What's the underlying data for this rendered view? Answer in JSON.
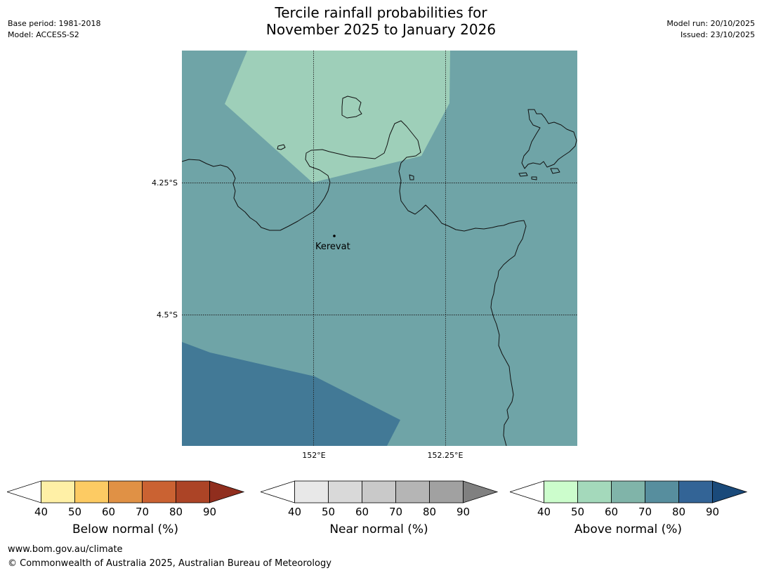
{
  "header": {
    "title_line1": "Tercile rainfall probabilities for",
    "title_line2": "November 2025 to January 2026",
    "base_period": "Base period: 1981-2018",
    "model": "Model: ACCESS-S2",
    "model_run": "Model run: 20/10/2025",
    "issued": "Issued: 23/10/2025"
  },
  "map": {
    "place_label": "Kerevat",
    "lat_labels": [
      "4.25°S",
      "4.5°S"
    ],
    "lon_labels": [
      "152°E",
      "152.25°E"
    ],
    "colors": {
      "above_50_60": "#9ecfb9",
      "above_60_70": "#6fa4a7",
      "above_80_90": "#427996",
      "coastline": "#111111",
      "gridline": "#222222"
    }
  },
  "legends": [
    {
      "title": "Below normal (%)",
      "ticks": [
        "40",
        "50",
        "60",
        "70",
        "80",
        "90"
      ],
      "colors": [
        "#fff0a6",
        "#fdcb63",
        "#e09145",
        "#ca6232",
        "#ac4426"
      ],
      "extend_color": "#902e1e"
    },
    {
      "title": "Near normal (%)",
      "ticks": [
        "40",
        "50",
        "60",
        "70",
        "80",
        "90"
      ],
      "colors": [
        "#e8e8e8",
        "#d9d9d9",
        "#c9c9c9",
        "#b5b5b5",
        "#a1a1a1"
      ],
      "extend_color": "#808080"
    },
    {
      "title": "Above normal (%)",
      "ticks": [
        "40",
        "50",
        "60",
        "70",
        "80",
        "90"
      ],
      "colors": [
        "#ccfdcc",
        "#a4d9bb",
        "#80b4a9",
        "#578e9e",
        "#336496"
      ],
      "extend_color": "#1a4a7a"
    }
  ],
  "footer": {
    "url": "www.bom.gov.au/climate",
    "copyright": "© Commonwealth of Australia 2025, Australian Bureau of Meteorology"
  }
}
